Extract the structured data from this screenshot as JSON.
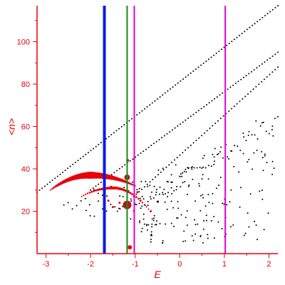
{
  "chart_data": {
    "type": "scatter",
    "title": "",
    "xlabel": "E",
    "ylabel": "<n>",
    "xlim": [
      -3.2,
      2.2
    ],
    "ylim": [
      0,
      117
    ],
    "x_ticks": [
      -3,
      -2,
      -1,
      0,
      1,
      2
    ],
    "y_ticks": [
      20,
      40,
      60,
      80,
      100
    ],
    "grid": false,
    "legend": "none",
    "colors": {
      "axis": "#e8000b",
      "black_points": "#000000",
      "red_points": "#e8000b",
      "dark_red_points": "#b01a1a",
      "blue_line": "#0a1ae6",
      "green_line": "#168a16",
      "magenta_line": "#e000e0"
    },
    "vertical_lines": [
      {
        "x": -1.69,
        "color": "#0a1ae6",
        "width": 4
      },
      {
        "x": -1.18,
        "color": "#168a16",
        "width": 2
      },
      {
        "x": -1.02,
        "color": "#e000e0",
        "width": 2
      },
      {
        "x": 1.02,
        "color": "#e000e0",
        "width": 2
      }
    ],
    "black_bands": [
      {
        "x0": -3.2,
        "x1": 2.2,
        "y0": 29,
        "y1": 117,
        "n": 95
      },
      {
        "x0": -2.0,
        "x1": 2.2,
        "y0": 30,
        "y1": 95,
        "n": 72
      },
      {
        "x0": -1.4,
        "x1": 2.2,
        "y0": 20,
        "y1": 88,
        "n": 60
      },
      {
        "x0": -2.6,
        "x1": 0.2,
        "y0": 23,
        "y1": 40,
        "n": 30
      },
      {
        "x0": -2.1,
        "x1": 0.2,
        "y0": 19,
        "y1": 35,
        "n": 26
      },
      {
        "x0": -1.1,
        "x1": 2.2,
        "y0": 20,
        "y1": 63,
        "n": 52
      }
    ],
    "red_arc": {
      "x0": -2.9,
      "x_peak": -2.0,
      "x1": -1.0,
      "y0": 30,
      "y_peak": 37,
      "y1": 32
    },
    "red_arc_lower": {
      "x0": -2.2,
      "x_peak": -1.5,
      "x1": -0.7,
      "y0": 27,
      "y_peak": 31,
      "y1": 21
    },
    "red_points_extra": [
      {
        "x": -1.17,
        "y": 44,
        "s": 2
      },
      {
        "x": -1.18,
        "y": 36,
        "s": 4
      },
      {
        "x": -1.18,
        "y": 23,
        "s": 6
      },
      {
        "x": -1.12,
        "y": 3,
        "s": 3
      },
      {
        "x": -1.6,
        "y": 25,
        "s": 1.5
      },
      {
        "x": -1.5,
        "y": 22,
        "s": 1.5
      },
      {
        "x": -1.35,
        "y": 24,
        "s": 1.5
      },
      {
        "x": -0.95,
        "y": 29,
        "s": 1.5
      },
      {
        "x": -0.88,
        "y": 25,
        "s": 1.5
      },
      {
        "x": -0.65,
        "y": 20,
        "s": 1.5
      }
    ]
  }
}
